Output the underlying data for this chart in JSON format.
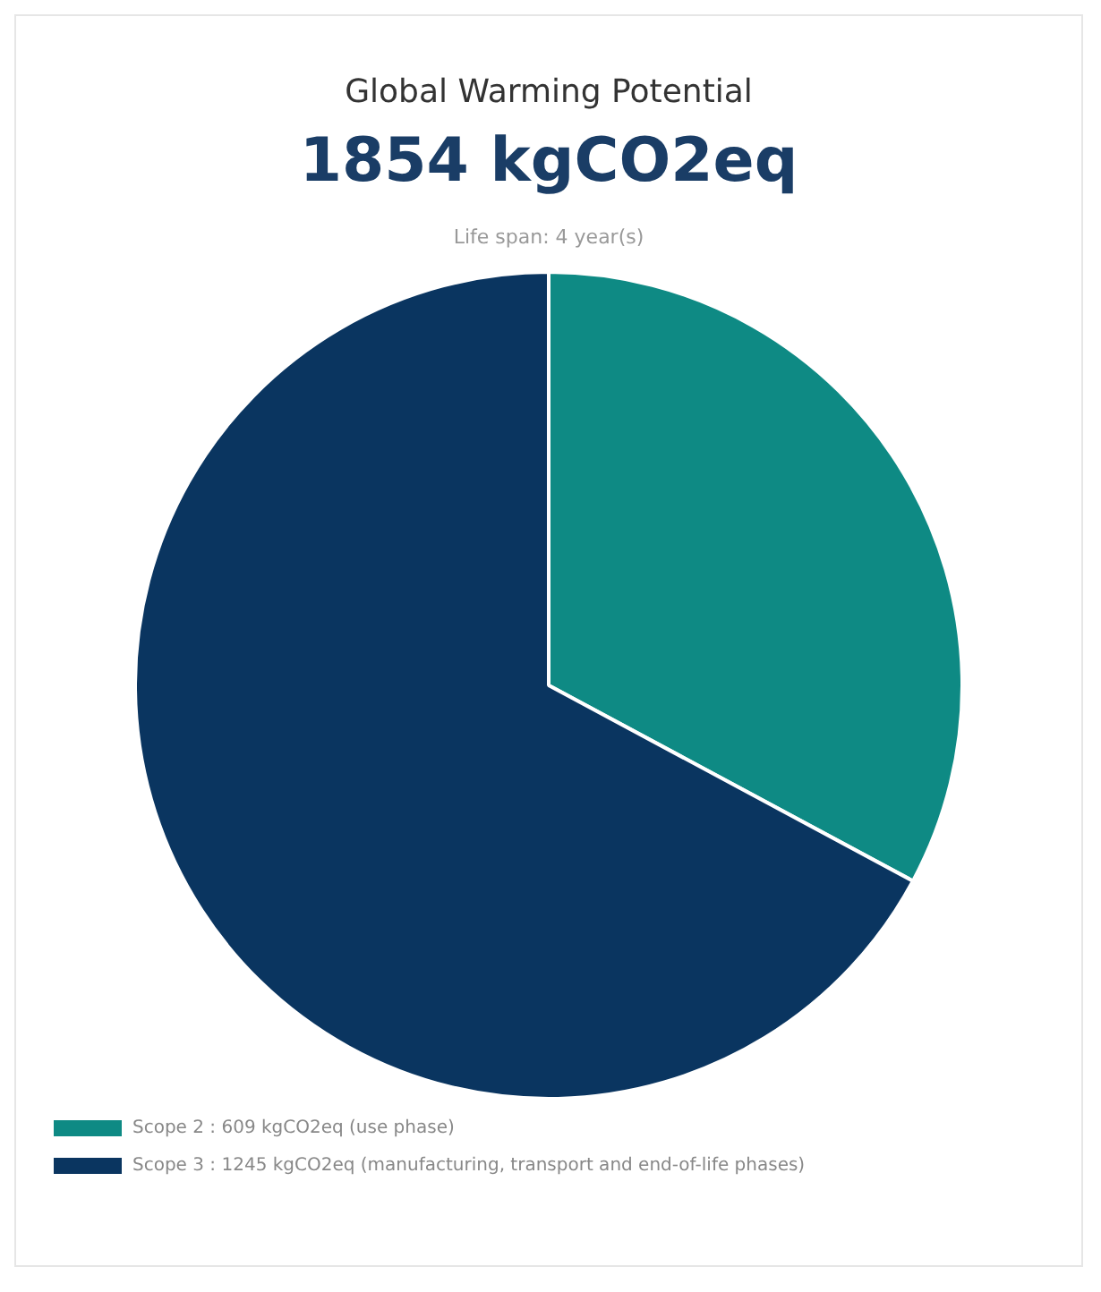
{
  "chart_data": {
    "type": "pie",
    "title": "Global Warming Potential",
    "subtitle": "1854 kgCO2eq",
    "annotations": [
      "Life span: 4 year(s)"
    ],
    "categories": [
      "Scope 2 : 609 kgCO2eq (use phase)",
      "Scope 3 : 1245 kgCO2eq (manufacturing, transport and end-of-life phases)"
    ],
    "values": [
      609,
      1245
    ],
    "colors": [
      "#0e8a84",
      "#0a3560"
    ],
    "legend": "bottom left"
  }
}
